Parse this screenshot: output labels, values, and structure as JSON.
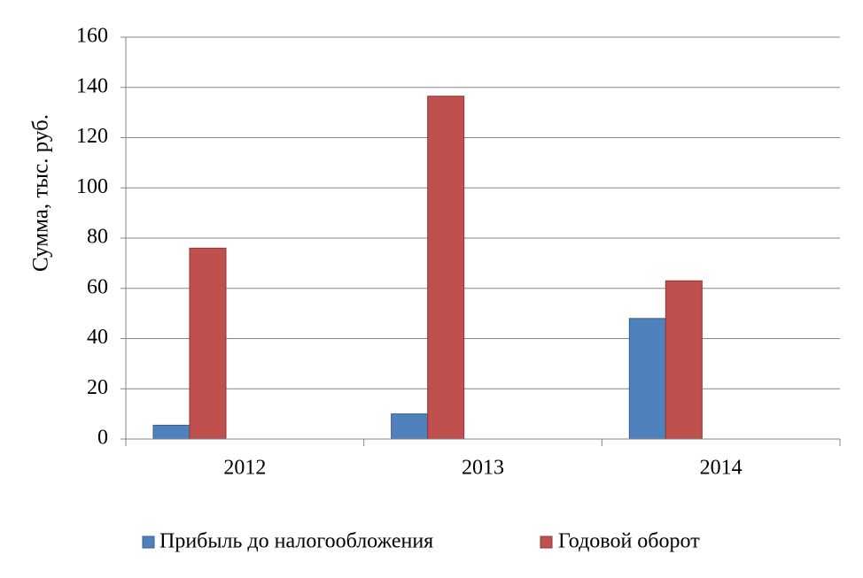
{
  "chart_data": {
    "type": "bar",
    "title": "",
    "xlabel": "",
    "ylabel": "Сумма,  тыс.  руб.",
    "categories": [
      "2012",
      "2013",
      "2014"
    ],
    "series": [
      {
        "name": "Прибыль до налогообложения",
        "values": [
          5.5,
          10,
          48
        ]
      },
      {
        "name": "Годовой оборот",
        "values": [
          76,
          136.5,
          63
        ]
      }
    ],
    "ylim": [
      0,
      160
    ],
    "yticks": [
      0,
      20,
      40,
      60,
      80,
      100,
      120,
      140,
      160
    ],
    "grid": true,
    "legend_position": "bottom",
    "colors": {
      "series": [
        "#4F81BD",
        "#C0504D"
      ],
      "series_stroke": [
        "#385D8A",
        "#8C3836"
      ],
      "grid": "#868686",
      "axis": "#868686"
    }
  }
}
